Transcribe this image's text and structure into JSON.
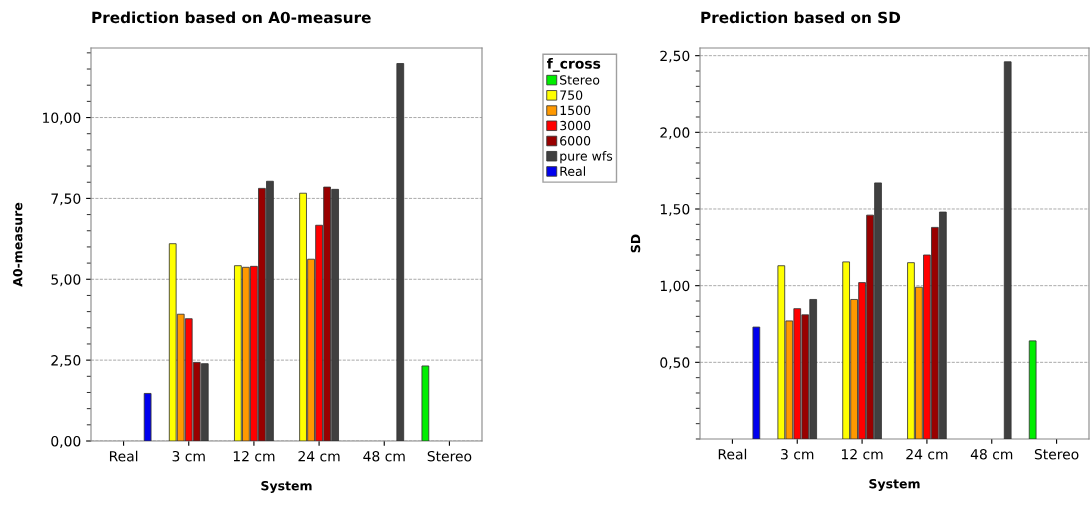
{
  "chart_data": [
    {
      "type": "bar",
      "title": "Prediction based on A0-measure",
      "xlabel": "System",
      "ylabel": "A0-measure",
      "legend_title": "f_cross",
      "categories": [
        "Real",
        "3 cm",
        "12 cm",
        "24 cm",
        "48 cm",
        "Stereo"
      ],
      "series": [
        {
          "name": "Stereo",
          "color": "#00ee00",
          "values": [
            null,
            null,
            null,
            null,
            null,
            2.32
          ]
        },
        {
          "name": "750",
          "color": "#ffff00",
          "values": [
            null,
            6.1,
            5.42,
            7.66,
            null,
            null
          ]
        },
        {
          "name": "1500",
          "color": "#ff9900",
          "values": [
            null,
            3.92,
            5.37,
            5.62,
            null,
            null
          ]
        },
        {
          "name": "3000",
          "color": "#ff0000",
          "values": [
            null,
            3.78,
            5.4,
            6.67,
            null,
            null
          ]
        },
        {
          "name": "6000",
          "color": "#990000",
          "values": [
            null,
            2.43,
            7.81,
            7.85,
            null,
            null
          ]
        },
        {
          "name": "pure wfs",
          "color": "#404040",
          "values": [
            null,
            2.39,
            8.03,
            7.78,
            11.67,
            null
          ]
        },
        {
          "name": "Real",
          "color": "#0000ee",
          "values": [
            1.47,
            null,
            null,
            null,
            null,
            null
          ]
        }
      ],
      "ylim": [
        0,
        12.15
      ],
      "yticks": [
        {
          "value": 0,
          "label": "0,00"
        },
        {
          "value": 2.5,
          "label": "2,50"
        },
        {
          "value": 5,
          "label": "5,00"
        },
        {
          "value": 7.5,
          "label": "7,50"
        },
        {
          "value": 10,
          "label": "10,00"
        }
      ],
      "grid": "y",
      "legend": "right"
    },
    {
      "type": "bar",
      "title": "Prediction based on SD",
      "xlabel": "System",
      "ylabel": "SD",
      "categories": [
        "Real",
        "3 cm",
        "12 cm",
        "24 cm",
        "48 cm",
        "Stereo"
      ],
      "series": [
        {
          "color": "#00ee00",
          "values": [
            null,
            null,
            null,
            null,
            null,
            0.64
          ]
        },
        {
          "color": "#ffff00",
          "values": [
            null,
            1.13,
            1.155,
            1.15,
            null,
            null
          ]
        },
        {
          "color": "#ff9900",
          "values": [
            null,
            0.77,
            0.91,
            0.99,
            null,
            null
          ]
        },
        {
          "color": "#ff0000",
          "values": [
            null,
            0.85,
            1.02,
            1.2,
            null,
            null
          ]
        },
        {
          "color": "#990000",
          "values": [
            null,
            0.81,
            1.46,
            1.38,
            null,
            null
          ]
        },
        {
          "color": "#404040",
          "values": [
            null,
            0.91,
            1.67,
            1.48,
            2.46,
            null
          ]
        },
        {
          "color": "#0000ee",
          "values": [
            0.73,
            null,
            null,
            null,
            null,
            null
          ]
        }
      ],
      "ylim": [
        0,
        2.55
      ],
      "yticks": [
        {
          "value": 0.5,
          "label": "0,50"
        },
        {
          "value": 1.0,
          "label": "1,00"
        },
        {
          "value": 1.5,
          "label": "1,50"
        },
        {
          "value": 2.0,
          "label": "2,00"
        },
        {
          "value": 2.5,
          "label": "2,50"
        }
      ],
      "grid": "y"
    }
  ]
}
